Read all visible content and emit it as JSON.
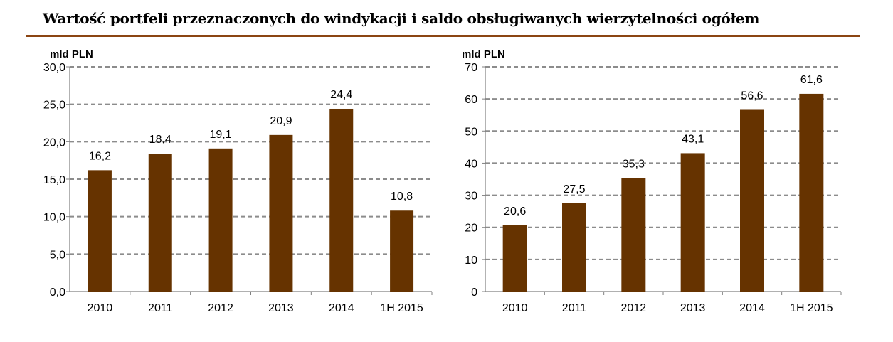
{
  "page": {
    "title": "Wartość portfeli przeznaczonych do windykacji i saldo obsługiwanych wierzytelności ogółem",
    "accent_color": "#8B4513"
  },
  "chart_data": [
    {
      "type": "bar",
      "unit_label": "mld PLN",
      "categories": [
        "2010",
        "2011",
        "2012",
        "2013",
        "2014",
        "1H 2015"
      ],
      "values": [
        16.2,
        18.4,
        19.1,
        20.9,
        24.4,
        10.8
      ],
      "data_labels": [
        "16,2",
        "18,4",
        "19,1",
        "20,9",
        "24,4",
        "10,8"
      ],
      "ylim": [
        0,
        30
      ],
      "y_ticks": [
        "0,0",
        "5,0",
        "10,0",
        "15,0",
        "20,0",
        "25,0",
        "30,0"
      ],
      "grid": true,
      "bar_color": "#663300"
    },
    {
      "type": "bar",
      "unit_label": "mld PLN",
      "categories": [
        "2010",
        "2011",
        "2012",
        "2013",
        "2014",
        "1H 2015"
      ],
      "values": [
        20.6,
        27.5,
        35.3,
        43.1,
        56.6,
        61.6
      ],
      "data_labels": [
        "20,6",
        "27,5",
        "35,3",
        "43,1",
        "56,6",
        "61,6"
      ],
      "ylim": [
        0,
        70
      ],
      "y_ticks": [
        "0",
        "10",
        "20",
        "30",
        "40",
        "50",
        "60",
        "70"
      ],
      "grid": true,
      "bar_color": "#663300"
    }
  ]
}
